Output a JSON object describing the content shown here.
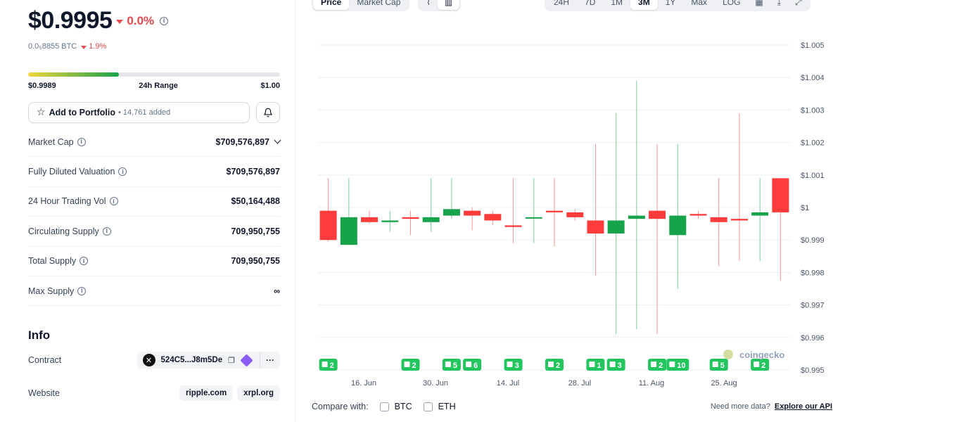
{
  "coin": {
    "price": "$0.9995",
    "change_24h": "0.0%",
    "btc_price": "0.0₅8855 BTC",
    "btc_change": "1.9%",
    "colors": {
      "down": "#e5484d",
      "up": "#16a34a"
    }
  },
  "range": {
    "low": "$0.9989",
    "label": "24h Range",
    "high": "$1.00",
    "fill_fraction": 0.36
  },
  "portfolio": {
    "label": "Add to Portfolio",
    "added": "• 14,761 added",
    "star_icon": "star-icon",
    "bell_icon": "bell-icon"
  },
  "stats": [
    {
      "label": "Market Cap",
      "value": "$709,576,897"
    },
    {
      "label": "Fully Diluted Valuation",
      "value": "$709,576,897"
    },
    {
      "label": "24 Hour Trading Vol",
      "value": "$50,164,488"
    },
    {
      "label": "Circulating Supply",
      "value": "709,950,755"
    },
    {
      "label": "Total Supply",
      "value": "709,950,755"
    },
    {
      "label": "Max Supply",
      "value": "∞"
    }
  ],
  "info": {
    "title": "Info",
    "contract_label": "Contract",
    "contract_value": "524C5...J8m5De",
    "more": "···",
    "website_label": "Website",
    "websites": [
      "ripple.com",
      "xrpl.org"
    ]
  },
  "toolbar": {
    "view_tabs": [
      "Price",
      "Market Cap"
    ],
    "active_view": "Price",
    "ranges": [
      "24H",
      "7D",
      "1M",
      "3M",
      "1Y",
      "Max",
      "LOG"
    ],
    "active_range": "3M"
  },
  "chart_data": {
    "type": "candlestick",
    "y_ticks": [
      "$1.005",
      "$1.004",
      "$1.003",
      "$1.002",
      "$1.001",
      "$1",
      "$0.999",
      "$0.998",
      "$0.997",
      "$0.996",
      "$0.995"
    ],
    "ylim": [
      0.995,
      1.005
    ],
    "x_ticks": [
      "16. Jun",
      "30. Jun",
      "14. Jul",
      "28. Jul",
      "11. Aug",
      "25. Aug"
    ],
    "candles": [
      {
        "open": 0.9999,
        "high": 1.0009,
        "low": 0.99895,
        "close": 0.999
      },
      {
        "open": 0.99885,
        "high": 1.0009,
        "low": 0.99885,
        "close": 0.9997
      },
      {
        "open": 0.9997,
        "high": 0.9999,
        "low": 0.9995,
        "close": 0.99955
      },
      {
        "open": 0.99955,
        "high": 0.9999,
        "low": 0.99925,
        "close": 0.9996
      },
      {
        "open": 0.9997,
        "high": 0.9999,
        "low": 0.99915,
        "close": 0.99965
      },
      {
        "open": 0.99955,
        "high": 1.0009,
        "low": 0.99925,
        "close": 0.9997
      },
      {
        "open": 0.99975,
        "high": 1.0009,
        "low": 0.99965,
        "close": 0.99995
      },
      {
        "open": 0.9999,
        "high": 1.0,
        "low": 0.9993,
        "close": 0.99975
      },
      {
        "open": 0.9998,
        "high": 0.9999,
        "low": 0.99945,
        "close": 0.9996
      },
      {
        "open": 0.99945,
        "high": 1.0009,
        "low": 0.9989,
        "close": 0.9994
      },
      {
        "open": 0.9997,
        "high": 1.0009,
        "low": 0.9989,
        "close": 0.9997
      },
      {
        "open": 0.9999,
        "high": 1.0009,
        "low": 0.9988,
        "close": 0.99985
      },
      {
        "open": 0.99985,
        "high": 0.99995,
        "low": 0.9996,
        "close": 0.9997
      },
      {
        "open": 0.9996,
        "high": 1.00195,
        "low": 0.9979,
        "close": 0.9992
      },
      {
        "open": 0.9992,
        "high": 1.0029,
        "low": 0.9961,
        "close": 0.9996
      },
      {
        "open": 0.99965,
        "high": 1.0039,
        "low": 0.99625,
        "close": 0.99975
      },
      {
        "open": 0.9999,
        "high": 1.00195,
        "low": 0.9961,
        "close": 0.99965
      },
      {
        "open": 0.99915,
        "high": 1.00195,
        "low": 0.9975,
        "close": 0.99975
      },
      {
        "open": 0.9998,
        "high": 0.9999,
        "low": 0.99965,
        "close": 0.99975
      },
      {
        "open": 0.9997,
        "high": 1.0009,
        "low": 0.9982,
        "close": 0.99955
      },
      {
        "open": 0.99965,
        "high": 1.0029,
        "low": 0.99835,
        "close": 0.9996
      },
      {
        "open": 0.99975,
        "high": 1.0009,
        "low": 0.99835,
        "close": 0.99985
      },
      {
        "open": 1.0009,
        "high": 1.0009,
        "low": 0.99775,
        "close": 0.99985
      }
    ],
    "news_markers": [
      {
        "candle": 0,
        "count": "2"
      },
      {
        "candle": 4,
        "count": "2"
      },
      {
        "candle": 6,
        "count": "5"
      },
      {
        "candle": 7,
        "count": "6"
      },
      {
        "candle": 9,
        "count": "3"
      },
      {
        "candle": 11,
        "count": "2"
      },
      {
        "candle": 13,
        "count": "1"
      },
      {
        "candle": 14,
        "count": "3"
      },
      {
        "candle": 16,
        "count": "2"
      },
      {
        "candle": 17,
        "count": "10"
      },
      {
        "candle": 19,
        "count": "5"
      },
      {
        "candle": 21,
        "count": "2"
      }
    ],
    "watermark": "coingecko",
    "colors": {
      "up": "#16a34a",
      "down": "#ff3b3b",
      "grid": "#eef0f3",
      "marker": "#22c55e"
    }
  },
  "compare": {
    "label": "Compare with:",
    "options": [
      "BTC",
      "ETH"
    ],
    "need_data": "Need more data?",
    "explore_link": "Explore our API"
  }
}
